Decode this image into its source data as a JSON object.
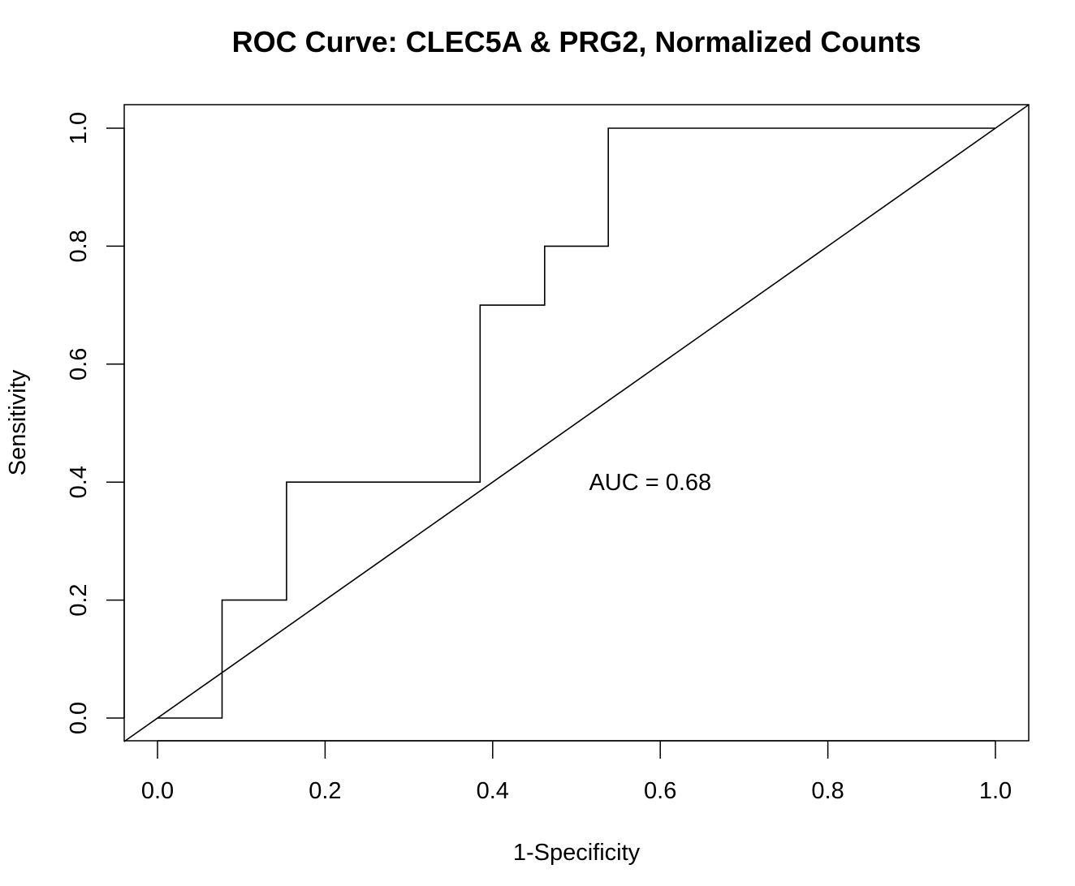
{
  "chart_data": {
    "type": "line",
    "title": "ROC Curve: CLEC5A & PRG2, Normalized Counts",
    "xlabel": "1-Specificity",
    "ylabel": "Sensitivity",
    "xlim": [
      0,
      1
    ],
    "ylim": [
      0,
      1
    ],
    "x_ticks": [
      "0.0",
      "0.2",
      "0.4",
      "0.6",
      "0.8",
      "1.0"
    ],
    "y_ticks": [
      "0.0",
      "0.2",
      "0.4",
      "0.6",
      "0.8",
      "1.0"
    ],
    "grid": false,
    "legend": "none",
    "line_color": "#000000",
    "series": [
      {
        "type": "step",
        "points": [
          [
            0.0,
            0.0
          ],
          [
            0.077,
            0.0
          ],
          [
            0.077,
            0.2
          ],
          [
            0.154,
            0.2
          ],
          [
            0.154,
            0.4
          ],
          [
            0.385,
            0.4
          ],
          [
            0.385,
            0.7
          ],
          [
            0.462,
            0.7
          ],
          [
            0.462,
            0.8
          ],
          [
            0.538,
            0.8
          ],
          [
            0.538,
            1.0
          ],
          [
            1.0,
            1.0
          ]
        ]
      },
      {
        "type": "reference",
        "points": [
          [
            -0.04,
            -0.04
          ],
          [
            1.04,
            1.04
          ]
        ]
      }
    ],
    "annotations": [
      {
        "text": "AUC =  0.68",
        "x": 0.515,
        "y": 0.4
      }
    ]
  }
}
